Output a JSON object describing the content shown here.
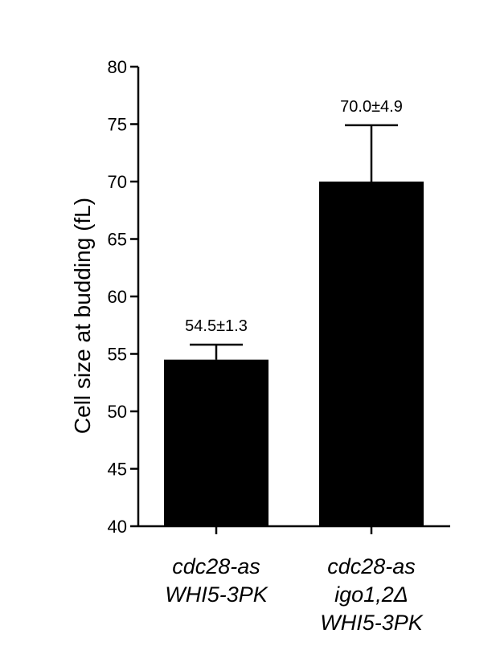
{
  "chart_data": {
    "type": "bar",
    "title": "",
    "xlabel": "",
    "ylabel": "Cell size at budding (fL)",
    "ylim": [
      40,
      80
    ],
    "yticks": [
      40,
      45,
      50,
      55,
      60,
      65,
      70,
      75,
      80
    ],
    "categories": [
      [
        "cdc28-as",
        "WHI5-3PK"
      ],
      [
        "cdc28-as",
        "igo1,2Δ",
        "WHI5-3PK"
      ]
    ],
    "values": [
      54.5,
      70.0
    ],
    "errors": [
      1.3,
      4.9
    ],
    "data_labels": [
      "54.5±1.3",
      "70.0±4.9"
    ],
    "bar_color": "#000000",
    "grid": false,
    "legend": "none"
  }
}
